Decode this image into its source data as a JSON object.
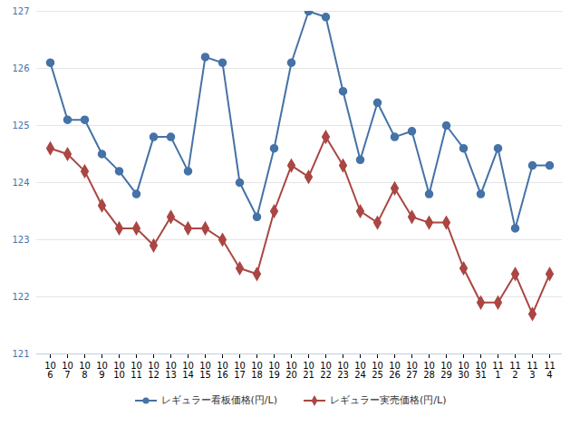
{
  "chart_data": {
    "type": "line",
    "categories": [
      "10\n6",
      "10\n7",
      "10\n8",
      "10\n9",
      "10\n10",
      "10\n11",
      "10\n12",
      "10\n13",
      "10\n14",
      "10\n15",
      "10\n16",
      "10\n17",
      "10\n18",
      "10\n19",
      "10\n20",
      "10\n21",
      "10\n22",
      "10\n23",
      "10\n24",
      "10\n25",
      "10\n26",
      "10\n27",
      "10\n28",
      "10\n29",
      "10\n30",
      "10\n31",
      "11\n1",
      "11\n2",
      "11\n3",
      "11\n4"
    ],
    "series": [
      {
        "name": "レギュラー看板価格(円/L)",
        "color": "#4572a7",
        "marker": "circle",
        "values": [
          126.1,
          125.1,
          125.1,
          124.5,
          124.2,
          123.8,
          124.8,
          124.8,
          124.2,
          126.2,
          126.1,
          124.0,
          123.4,
          124.6,
          126.1,
          127.0,
          126.9,
          125.6,
          124.4,
          125.4,
          124.8,
          124.9,
          123.8,
          125.0,
          124.6,
          123.8,
          124.6,
          123.2,
          124.3,
          124.3
        ]
      },
      {
        "name": "レギュラー実売価格(円/L)",
        "color": "#aa4643",
        "marker": "diamond",
        "values": [
          124.6,
          124.5,
          124.2,
          123.6,
          123.2,
          123.2,
          122.9,
          123.4,
          123.2,
          123.2,
          123.0,
          122.5,
          122.4,
          123.5,
          124.3,
          124.1,
          124.8,
          124.3,
          123.5,
          123.3,
          123.9,
          123.4,
          123.3,
          123.3,
          122.5,
          121.9,
          121.9,
          122.4,
          121.7,
          122.4
        ]
      }
    ],
    "ylim": [
      121,
      127
    ],
    "yticks": [
      121,
      122,
      123,
      124,
      125,
      126,
      127
    ],
    "grid": true,
    "legend": "bottom"
  }
}
